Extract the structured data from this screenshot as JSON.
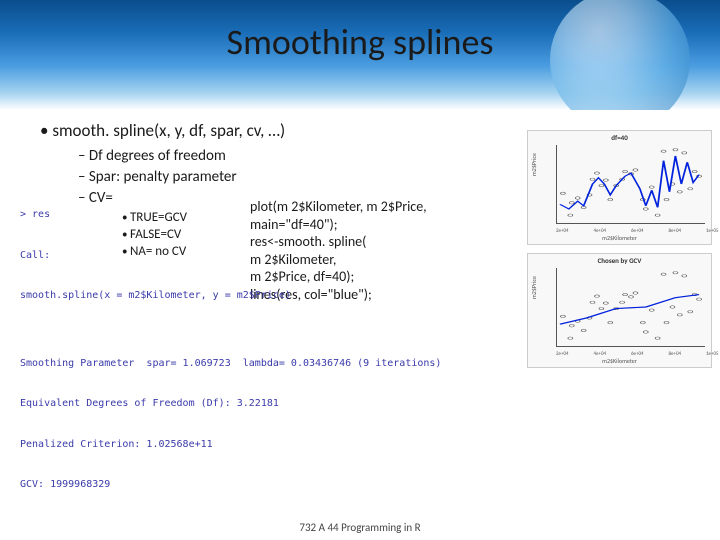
{
  "title": "Smoothing splines",
  "footer": "732 A 44 Programming in R",
  "bullets": {
    "main": "smooth. spline(x, y, df, spar, cv, …)",
    "sub1": "Df degrees of freedom",
    "sub2": "Spar: penalty parameter",
    "sub3": "CV=",
    "sub3a": "TRUE=GCV",
    "sub3b": "FALSE=CV",
    "sub3c": "NA= no CV"
  },
  "code": {
    "l1": "plot(m 2$Kilometer, m 2$Price,",
    "l2": "main=\"df=40\");",
    "l3": "res<-smooth. spline(",
    "l4": "m 2$Kilometer,",
    "l5": "m 2$Price, df=40);",
    "l6": "lines(res, col=\"blue\");"
  },
  "console": {
    "l1": "> res",
    "l2": "Call:",
    "l3": "smooth.spline(x = m2$Kilometer, y = m2$Price)",
    "l4": "",
    "l5": "Smoothing Parameter  spar= 1.069723  lambda= 0.03436746 (9 iterations)",
    "l6": "Equivalent Degrees of Freedom (Df): 3.22181",
    "l7": "Penalized Criterion: 1.02568e+11",
    "l8": "GCV: 1999968329"
  },
  "plot1": {
    "title": "df=40",
    "xlab": "m2$Kilometer",
    "ylab": "m2$Price",
    "xticks": [
      "2e+04",
      "4e+04",
      "6e+04",
      "8e+04",
      "1e+05"
    ],
    "line_color": "#0022dd",
    "point_color": "#555555",
    "scatter": [
      [
        0.04,
        0.38
      ],
      [
        0.09,
        0.1
      ],
      [
        0.1,
        0.26
      ],
      [
        0.14,
        0.32
      ],
      [
        0.18,
        0.2
      ],
      [
        0.22,
        0.36
      ],
      [
        0.24,
        0.56
      ],
      [
        0.27,
        0.64
      ],
      [
        0.3,
        0.48
      ],
      [
        0.33,
        0.55
      ],
      [
        0.36,
        0.3
      ],
      [
        0.4,
        0.48
      ],
      [
        0.44,
        0.56
      ],
      [
        0.46,
        0.66
      ],
      [
        0.5,
        0.63
      ],
      [
        0.53,
        0.68
      ],
      [
        0.58,
        0.3
      ],
      [
        0.6,
        0.18
      ],
      [
        0.64,
        0.46
      ],
      [
        0.68,
        0.1
      ],
      [
        0.72,
        0.92
      ],
      [
        0.74,
        0.3
      ],
      [
        0.78,
        0.5
      ],
      [
        0.8,
        0.94
      ],
      [
        0.83,
        0.4
      ],
      [
        0.86,
        0.9
      ],
      [
        0.9,
        0.44
      ],
      [
        0.93,
        0.66
      ],
      [
        0.96,
        0.6
      ]
    ],
    "line": [
      [
        0.02,
        0.24
      ],
      [
        0.08,
        0.18
      ],
      [
        0.14,
        0.28
      ],
      [
        0.18,
        0.22
      ],
      [
        0.24,
        0.5
      ],
      [
        0.28,
        0.58
      ],
      [
        0.32,
        0.5
      ],
      [
        0.36,
        0.36
      ],
      [
        0.4,
        0.48
      ],
      [
        0.46,
        0.6
      ],
      [
        0.5,
        0.64
      ],
      [
        0.56,
        0.44
      ],
      [
        0.6,
        0.22
      ],
      [
        0.64,
        0.42
      ],
      [
        0.68,
        0.2
      ],
      [
        0.72,
        0.8
      ],
      [
        0.76,
        0.4
      ],
      [
        0.8,
        0.86
      ],
      [
        0.84,
        0.5
      ],
      [
        0.88,
        0.78
      ],
      [
        0.92,
        0.52
      ],
      [
        0.96,
        0.62
      ]
    ]
  },
  "plot2": {
    "title": "Chosen by GCV",
    "xlab": "m2$Kilometer",
    "ylab": "m2$Price",
    "xticks": [
      "2e+04",
      "4e+04",
      "6e+04",
      "8e+04",
      "1e+05"
    ],
    "line_color": "#0022dd",
    "point_color": "#555555",
    "scatter": [
      [
        0.04,
        0.38
      ],
      [
        0.09,
        0.1
      ],
      [
        0.1,
        0.26
      ],
      [
        0.14,
        0.32
      ],
      [
        0.18,
        0.2
      ],
      [
        0.22,
        0.36
      ],
      [
        0.24,
        0.56
      ],
      [
        0.27,
        0.64
      ],
      [
        0.3,
        0.48
      ],
      [
        0.33,
        0.55
      ],
      [
        0.36,
        0.3
      ],
      [
        0.4,
        0.48
      ],
      [
        0.44,
        0.56
      ],
      [
        0.46,
        0.66
      ],
      [
        0.5,
        0.63
      ],
      [
        0.53,
        0.68
      ],
      [
        0.58,
        0.3
      ],
      [
        0.6,
        0.18
      ],
      [
        0.64,
        0.46
      ],
      [
        0.68,
        0.1
      ],
      [
        0.72,
        0.92
      ],
      [
        0.74,
        0.3
      ],
      [
        0.78,
        0.5
      ],
      [
        0.8,
        0.94
      ],
      [
        0.83,
        0.4
      ],
      [
        0.86,
        0.9
      ],
      [
        0.9,
        0.44
      ],
      [
        0.93,
        0.66
      ],
      [
        0.96,
        0.6
      ]
    ],
    "line": [
      [
        0.02,
        0.28
      ],
      [
        0.2,
        0.36
      ],
      [
        0.4,
        0.48
      ],
      [
        0.6,
        0.5
      ],
      [
        0.8,
        0.62
      ],
      [
        0.96,
        0.66
      ]
    ]
  }
}
